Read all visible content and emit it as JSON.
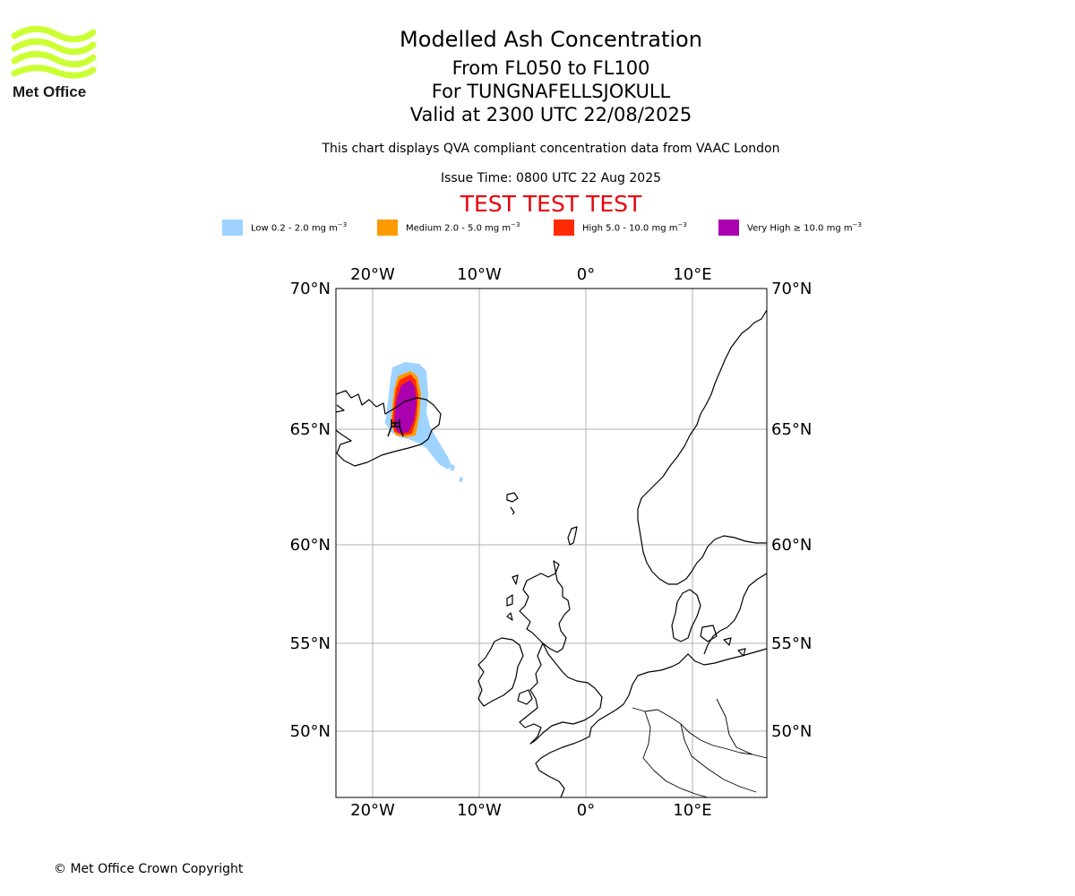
{
  "logo": {
    "text": "Met Office",
    "colors": {
      "waves": "#ccff33",
      "text": "#1a1a1a"
    }
  },
  "title": {
    "line1": "Modelled Ash Concentration",
    "line2": "From FL050 to FL100",
    "line3": "For TUNGNAFELLSJOKULL",
    "line4": "Valid at 2300 UTC 22/08/2025"
  },
  "description": "This chart displays QVA compliant concentration data from VAAC London",
  "issue_time": "Issue Time: 0800 UTC 22 Aug 2025",
  "test_banner": "TEST TEST TEST",
  "legend": [
    {
      "label": "Low 0.2 - 2.0 mg m",
      "unit_sup": "−3",
      "color": "#9fd3ff"
    },
    {
      "label": "Medium 2.0 - 5.0 mg m",
      "unit_sup": "−3",
      "color": "#ff9a00"
    },
    {
      "label": "High 5.0 - 10.0 mg m",
      "unit_sup": "−3",
      "color": "#ff2a00"
    },
    {
      "label": "Very High  ≥  10.0 mg m",
      "unit_sup": "−3",
      "color": "#aa00b0"
    }
  ],
  "map": {
    "lon_labels": [
      "20°W",
      "10°W",
      "0°",
      "10°E"
    ],
    "lat_labels": [
      "70°N",
      "65°N",
      "60°N",
      "55°N",
      "50°N"
    ],
    "volcano_icon": "volcano-icon"
  },
  "copyright": "© Met Office Crown Copyright"
}
